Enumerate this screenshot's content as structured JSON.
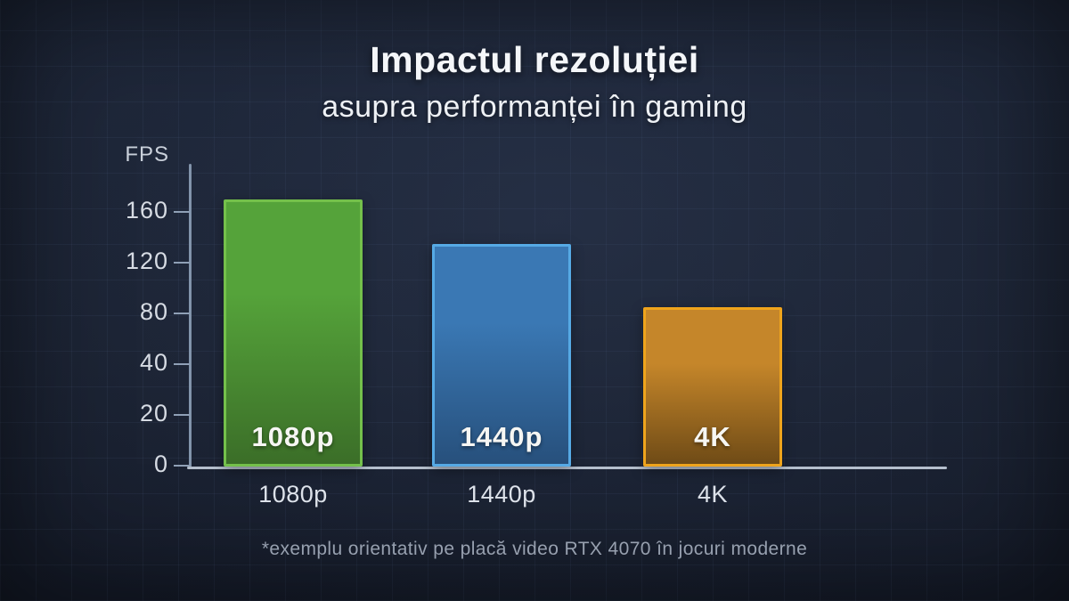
{
  "chart_data": {
    "type": "bar",
    "title": "Impactul rezoluției",
    "subtitle": "asupra performanței în gaming",
    "ylabel": "FPS",
    "xlabel": "",
    "yticks": [
      160,
      120,
      80,
      40,
      20,
      0
    ],
    "ylim": [
      0,
      180
    ],
    "grid": true,
    "legend": "none",
    "categories": [
      "1080p",
      "1440p",
      "4K"
    ],
    "values": [
      170,
      135,
      85
    ],
    "bar_colors": [
      {
        "fill": "#55a33a",
        "fill_dark": "#3b6e28",
        "border": "#74c04b"
      },
      {
        "fill": "#3a78b4",
        "fill_dark": "#27507c",
        "border": "#56aae5"
      },
      {
        "fill": "#c5862a",
        "fill_dark": "#6f4b16",
        "border": "#efa41c"
      }
    ],
    "footnote": "*exemplu orientativ pe placă video RTX 4070 în jocuri moderne"
  },
  "palette": {
    "background": "#1a2232",
    "axis": "#aeb9c7",
    "title_text": "#f4f6f9",
    "muted_text": "#97a0af"
  }
}
